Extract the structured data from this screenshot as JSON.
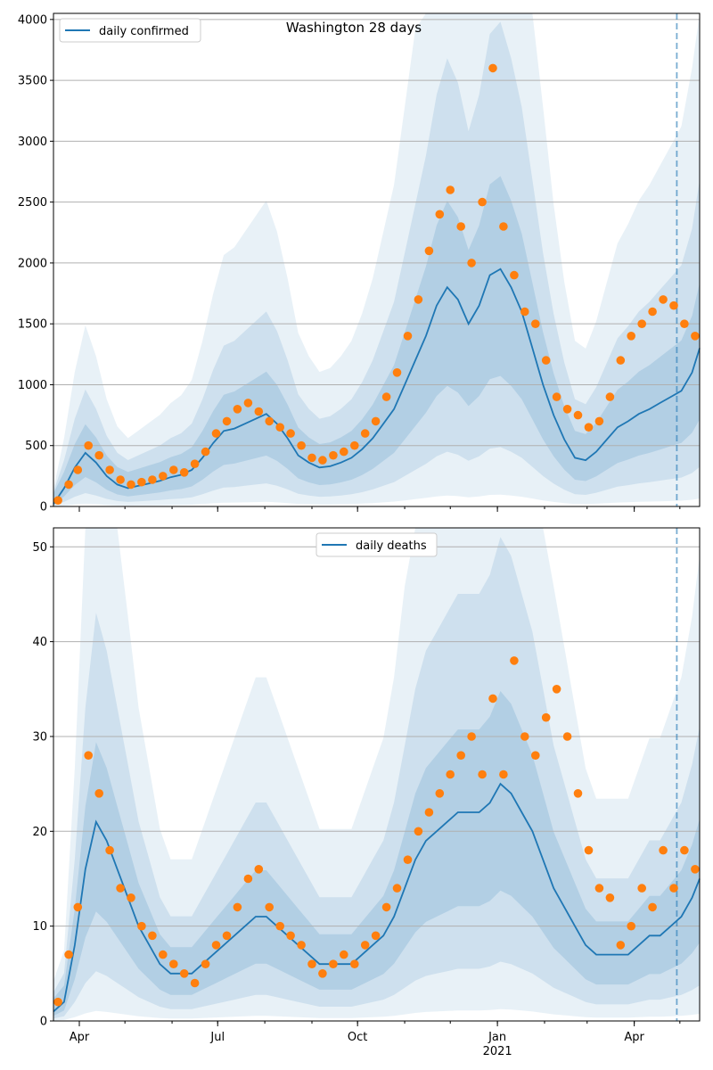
{
  "chart_data": [
    {
      "type": "line",
      "title": "Washington 28 days",
      "xlabel": "",
      "ylabel": "",
      "xlim": [
        "2020-03-15",
        "2021-05-14"
      ],
      "ylim": [
        0,
        4050
      ],
      "yticks": [
        0,
        500,
        1000,
        1500,
        2000,
        2500,
        3000,
        3500,
        4000
      ],
      "xticks": [
        {
          "date": "2020-04-01",
          "label": "Apr"
        },
        {
          "date": "2020-07-01",
          "label": "Jul"
        },
        {
          "date": "2020-10-01",
          "label": "Oct"
        },
        {
          "date": "2021-01-01",
          "label": "Jan",
          "sublabel": ""
        },
        {
          "date": "2021-04-01",
          "label": "Apr"
        }
      ],
      "grid": "horizontal",
      "legend_position": "top-left",
      "vline_date": "2021-04-29",
      "series": [
        {
          "name": "daily confirmed",
          "kind": "line",
          "color": "#1f77b4",
          "x": [
            "2020-03-15",
            "2020-03-22",
            "2020-03-29",
            "2020-04-05",
            "2020-04-12",
            "2020-04-19",
            "2020-04-26",
            "2020-05-03",
            "2020-05-10",
            "2020-05-17",
            "2020-05-24",
            "2020-05-31",
            "2020-06-07",
            "2020-06-14",
            "2020-06-21",
            "2020-06-28",
            "2020-07-05",
            "2020-07-12",
            "2020-07-19",
            "2020-07-26",
            "2020-08-02",
            "2020-08-09",
            "2020-08-16",
            "2020-08-23",
            "2020-08-30",
            "2020-09-06",
            "2020-09-13",
            "2020-09-20",
            "2020-09-27",
            "2020-10-04",
            "2020-10-11",
            "2020-10-18",
            "2020-10-25",
            "2020-11-01",
            "2020-11-08",
            "2020-11-15",
            "2020-11-22",
            "2020-11-29",
            "2020-12-06",
            "2020-12-13",
            "2020-12-20",
            "2020-12-27",
            "2021-01-03",
            "2021-01-10",
            "2021-01-17",
            "2021-01-24",
            "2021-01-31",
            "2021-02-07",
            "2021-02-14",
            "2021-02-21",
            "2021-02-28",
            "2021-03-07",
            "2021-03-14",
            "2021-03-21",
            "2021-03-28",
            "2021-04-04",
            "2021-04-11",
            "2021-04-18",
            "2021-04-25",
            "2021-05-02",
            "2021-05-09",
            "2021-05-14"
          ],
          "y": [
            20,
            150,
            320,
            440,
            360,
            250,
            180,
            150,
            170,
            190,
            210,
            240,
            260,
            300,
            400,
            520,
            620,
            640,
            680,
            720,
            760,
            680,
            560,
            420,
            360,
            320,
            330,
            360,
            400,
            470,
            560,
            680,
            800,
            1000,
            1200,
            1400,
            1650,
            1800,
            1700,
            1500,
            1650,
            1900,
            1950,
            1800,
            1600,
            1300,
            1000,
            750,
            550,
            400,
            380,
            450,
            550,
            650,
            700,
            760,
            800,
            850,
            900,
            950,
            1100,
            1300
          ]
        },
        {
          "name": "",
          "kind": "scatter",
          "color": "#ff7f0e",
          "x": [
            "2020-03-18",
            "2020-03-25",
            "2020-03-31",
            "2020-04-07",
            "2020-04-14",
            "2020-04-21",
            "2020-04-28",
            "2020-05-05",
            "2020-05-12",
            "2020-05-19",
            "2020-05-26",
            "2020-06-02",
            "2020-06-09",
            "2020-06-16",
            "2020-06-23",
            "2020-06-30",
            "2020-07-07",
            "2020-07-14",
            "2020-07-21",
            "2020-07-28",
            "2020-08-04",
            "2020-08-11",
            "2020-08-18",
            "2020-08-25",
            "2020-09-01",
            "2020-09-08",
            "2020-09-15",
            "2020-09-22",
            "2020-09-29",
            "2020-10-06",
            "2020-10-13",
            "2020-10-20",
            "2020-10-27",
            "2020-11-03",
            "2020-11-10",
            "2020-11-17",
            "2020-11-24",
            "2020-12-01",
            "2020-12-08",
            "2020-12-15",
            "2020-12-22",
            "2020-12-29",
            "2021-01-05",
            "2021-01-12",
            "2021-01-19",
            "2021-01-26",
            "2021-02-02",
            "2021-02-09",
            "2021-02-16",
            "2021-02-23",
            "2021-03-02",
            "2021-03-09",
            "2021-03-16",
            "2021-03-23",
            "2021-03-30",
            "2021-04-06",
            "2021-04-13",
            "2021-04-20",
            "2021-04-27",
            "2021-05-04",
            "2021-05-11"
          ],
          "y": [
            50,
            180,
            300,
            500,
            420,
            300,
            220,
            180,
            200,
            220,
            250,
            300,
            280,
            350,
            450,
            600,
            700,
            800,
            850,
            780,
            700,
            650,
            600,
            500,
            400,
            380,
            420,
            450,
            500,
            600,
            700,
            900,
            1100,
            1400,
            1700,
            2100,
            2400,
            2600,
            2300,
            2000,
            2500,
            3600,
            2300,
            1900,
            1600,
            1500,
            1200,
            900,
            800,
            750,
            650,
            700,
            900,
            1200,
            1400,
            1500,
            1600,
            1700,
            1650,
            1500,
            1400
          ]
        }
      ]
    },
    {
      "type": "line",
      "title": "",
      "xlabel": "",
      "ylabel": "",
      "xlim": [
        "2020-03-15",
        "2021-05-14"
      ],
      "ylim": [
        0,
        52
      ],
      "yticks": [
        0,
        10,
        20,
        30,
        40,
        50
      ],
      "xticks": [
        {
          "date": "2020-04-01",
          "label": "Apr"
        },
        {
          "date": "2020-07-01",
          "label": "Jul"
        },
        {
          "date": "2020-10-01",
          "label": "Oct"
        },
        {
          "date": "2021-01-01",
          "label": "Jan",
          "sublabel": "2021"
        },
        {
          "date": "2021-04-01",
          "label": "Apr"
        }
      ],
      "grid": "horizontal",
      "legend_position": "top-center",
      "vline_date": "2021-04-29",
      "series": [
        {
          "name": "daily deaths",
          "kind": "line",
          "color": "#1f77b4",
          "x": [
            "2020-03-15",
            "2020-03-22",
            "2020-03-29",
            "2020-04-05",
            "2020-04-12",
            "2020-04-19",
            "2020-04-26",
            "2020-05-03",
            "2020-05-10",
            "2020-05-17",
            "2020-05-24",
            "2020-05-31",
            "2020-06-07",
            "2020-06-14",
            "2020-06-21",
            "2020-06-28",
            "2020-07-05",
            "2020-07-12",
            "2020-07-19",
            "2020-07-26",
            "2020-08-02",
            "2020-08-09",
            "2020-08-16",
            "2020-08-23",
            "2020-08-30",
            "2020-09-06",
            "2020-09-13",
            "2020-09-20",
            "2020-09-27",
            "2020-10-04",
            "2020-10-11",
            "2020-10-18",
            "2020-10-25",
            "2020-11-01",
            "2020-11-08",
            "2020-11-15",
            "2020-11-22",
            "2020-11-29",
            "2020-12-06",
            "2020-12-13",
            "2020-12-20",
            "2020-12-27",
            "2021-01-03",
            "2021-01-10",
            "2021-01-17",
            "2021-01-24",
            "2021-01-31",
            "2021-02-07",
            "2021-02-14",
            "2021-02-21",
            "2021-02-28",
            "2021-03-07",
            "2021-03-14",
            "2021-03-21",
            "2021-03-28",
            "2021-04-04",
            "2021-04-11",
            "2021-04-18",
            "2021-04-25",
            "2021-05-02",
            "2021-05-09",
            "2021-05-14"
          ],
          "y": [
            1,
            2,
            8,
            16,
            21,
            19,
            16,
            13,
            10,
            8,
            6,
            5,
            5,
            5,
            6,
            7,
            8,
            9,
            10,
            11,
            11,
            10,
            9,
            8,
            7,
            6,
            6,
            6,
            6,
            7,
            8,
            9,
            11,
            14,
            17,
            19,
            20,
            21,
            22,
            22,
            22,
            23,
            25,
            24,
            22,
            20,
            17,
            14,
            12,
            10,
            8,
            7,
            7,
            7,
            7,
            8,
            9,
            9,
            10,
            11,
            13,
            15
          ]
        },
        {
          "name": "",
          "kind": "scatter",
          "color": "#ff7f0e",
          "x": [
            "2020-03-18",
            "2020-03-25",
            "2020-03-31",
            "2020-04-07",
            "2020-04-14",
            "2020-04-21",
            "2020-04-28",
            "2020-05-05",
            "2020-05-12",
            "2020-05-19",
            "2020-05-26",
            "2020-06-02",
            "2020-06-09",
            "2020-06-16",
            "2020-06-23",
            "2020-06-30",
            "2020-07-07",
            "2020-07-14",
            "2020-07-21",
            "2020-07-28",
            "2020-08-04",
            "2020-08-11",
            "2020-08-18",
            "2020-08-25",
            "2020-09-01",
            "2020-09-08",
            "2020-09-15",
            "2020-09-22",
            "2020-09-29",
            "2020-10-06",
            "2020-10-13",
            "2020-10-20",
            "2020-10-27",
            "2020-11-03",
            "2020-11-10",
            "2020-11-17",
            "2020-11-24",
            "2020-12-01",
            "2020-12-08",
            "2020-12-15",
            "2020-12-22",
            "2020-12-29",
            "2021-01-05",
            "2021-01-12",
            "2021-01-19",
            "2021-01-26",
            "2021-02-02",
            "2021-02-09",
            "2021-02-16",
            "2021-02-23",
            "2021-03-02",
            "2021-03-09",
            "2021-03-16",
            "2021-03-23",
            "2021-03-30",
            "2021-04-06",
            "2021-04-13",
            "2021-04-20",
            "2021-04-27",
            "2021-05-04",
            "2021-05-11"
          ],
          "y": [
            2,
            7,
            12,
            28,
            24,
            18,
            14,
            13,
            10,
            9,
            7,
            6,
            5,
            4,
            6,
            8,
            9,
            12,
            15,
            16,
            12,
            10,
            9,
            8,
            6,
            5,
            6,
            7,
            6,
            8,
            9,
            12,
            14,
            17,
            20,
            22,
            24,
            26,
            28,
            30,
            26,
            34,
            26,
            38,
            30,
            28,
            32,
            35,
            30,
            24,
            18,
            14,
            13,
            8,
            10,
            14,
            12,
            18,
            14,
            18,
            16
          ]
        }
      ]
    }
  ]
}
